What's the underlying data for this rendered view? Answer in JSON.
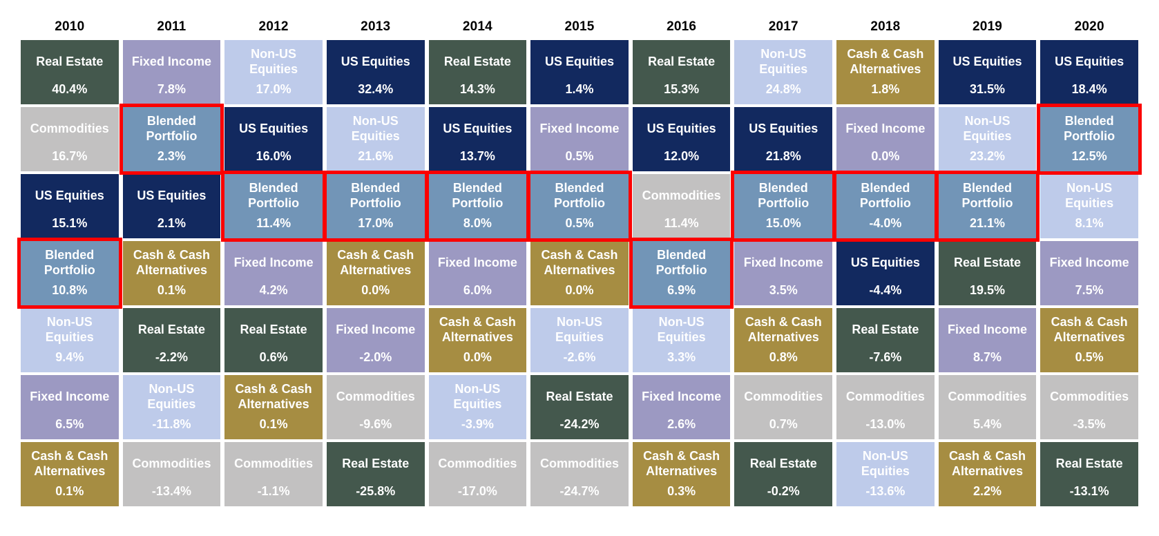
{
  "page": {
    "background_color": "#ffffff",
    "text_color_cells": "#ffffff",
    "text_color_years": "#000000"
  },
  "chart_data": {
    "type": "heatmap",
    "subtype": "asset-class-returns-quilt",
    "years": [
      "2010",
      "2011",
      "2012",
      "2013",
      "2014",
      "2015",
      "2016",
      "2017",
      "2018",
      "2019",
      "2020"
    ],
    "legend_position": "none",
    "grid": "on",
    "highlighted_asset": "Blended Portfolio",
    "highlight_border_color": "#fb0000",
    "asset_classes": [
      {
        "name": "Real Estate",
        "color": "#44584d"
      },
      {
        "name": "Fixed Income",
        "color": "#9c99c2"
      },
      {
        "name": "Non-US Equities",
        "color": "#becbea"
      },
      {
        "name": "US Equities",
        "color": "#12295f"
      },
      {
        "name": "Commodities",
        "color": "#c2c1c1"
      },
      {
        "name": "Blended Portfolio",
        "color": "#7295b7"
      },
      {
        "name": "Cash & Cash Alternatives",
        "color": "#a68d42"
      }
    ],
    "series": [
      {
        "name": "Real Estate",
        "values": [
          40.4,
          -2.2,
          0.6,
          -25.8,
          14.3,
          -24.2,
          15.3,
          -0.2,
          -7.6,
          19.5,
          -13.1
        ]
      },
      {
        "name": "Fixed Income",
        "values": [
          6.5,
          7.8,
          4.2,
          -2.0,
          6.0,
          0.5,
          2.6,
          3.5,
          0.0,
          8.7,
          7.5
        ]
      },
      {
        "name": "Non-US Equities",
        "values": [
          9.4,
          -11.8,
          17.0,
          21.6,
          -3.9,
          -2.6,
          3.3,
          24.8,
          -13.6,
          23.2,
          8.1
        ]
      },
      {
        "name": "US Equities",
        "values": [
          15.1,
          2.1,
          16.0,
          32.4,
          13.7,
          1.4,
          12.0,
          21.8,
          -4.4,
          31.5,
          18.4
        ]
      },
      {
        "name": "Commodities",
        "values": [
          16.7,
          -13.4,
          -1.1,
          -9.6,
          -17.0,
          -24.7,
          11.4,
          0.7,
          -13.0,
          5.4,
          -3.5
        ]
      },
      {
        "name": "Blended Portfolio",
        "values": [
          10.8,
          2.3,
          11.4,
          17.0,
          8.0,
          0.5,
          6.9,
          15.0,
          -4.0,
          21.1,
          12.5
        ]
      },
      {
        "name": "Cash & Cash Alternatives",
        "values": [
          0.1,
          0.1,
          0.1,
          0.0,
          0.0,
          0.0,
          0.3,
          0.8,
          1.8,
          2.2,
          0.5
        ]
      }
    ],
    "ranked_columns": [
      {
        "year": "2010",
        "cells": [
          {
            "asset": "Real Estate",
            "value": "40.4%",
            "highlighted": false
          },
          {
            "asset": "Commodities",
            "value": "16.7%",
            "highlighted": false
          },
          {
            "asset": "US Equities",
            "value": "15.1%",
            "highlighted": false
          },
          {
            "asset": "Blended Portfolio",
            "value": "10.8%",
            "highlighted": true
          },
          {
            "asset": "Non-US Equities",
            "value": "9.4%",
            "highlighted": false
          },
          {
            "asset": "Fixed Income",
            "value": "6.5%",
            "highlighted": false
          },
          {
            "asset": "Cash & Cash Alternatives",
            "value": "0.1%",
            "highlighted": false
          }
        ]
      },
      {
        "year": "2011",
        "cells": [
          {
            "asset": "Fixed Income",
            "value": "7.8%",
            "highlighted": false
          },
          {
            "asset": "Blended Portfolio",
            "value": "2.3%",
            "highlighted": true
          },
          {
            "asset": "US Equities",
            "value": "2.1%",
            "highlighted": false
          },
          {
            "asset": "Cash & Cash Alternatives",
            "value": "0.1%",
            "highlighted": false
          },
          {
            "asset": "Real Estate",
            "value": "-2.2%",
            "highlighted": false
          },
          {
            "asset": "Non-US Equities",
            "value": "-11.8%",
            "highlighted": false
          },
          {
            "asset": "Commodities",
            "value": "-13.4%",
            "highlighted": false
          }
        ]
      },
      {
        "year": "2012",
        "cells": [
          {
            "asset": "Non-US Equities",
            "value": "17.0%",
            "highlighted": false
          },
          {
            "asset": "US Equities",
            "value": "16.0%",
            "highlighted": false
          },
          {
            "asset": "Blended Portfolio",
            "value": "11.4%",
            "highlighted": true
          },
          {
            "asset": "Fixed Income",
            "value": "4.2%",
            "highlighted": false
          },
          {
            "asset": "Real Estate",
            "value": "0.6%",
            "highlighted": false
          },
          {
            "asset": "Cash & Cash Alternatives",
            "value": "0.1%",
            "highlighted": false
          },
          {
            "asset": "Commodities",
            "value": "-1.1%",
            "highlighted": false
          }
        ]
      },
      {
        "year": "2013",
        "cells": [
          {
            "asset": "US Equities",
            "value": "32.4%",
            "highlighted": false
          },
          {
            "asset": "Non-US Equities",
            "value": "21.6%",
            "highlighted": false
          },
          {
            "asset": "Blended Portfolio",
            "value": "17.0%",
            "highlighted": true
          },
          {
            "asset": "Cash & Cash Alternatives",
            "value": "0.0%",
            "highlighted": false
          },
          {
            "asset": "Fixed Income",
            "value": "-2.0%",
            "highlighted": false
          },
          {
            "asset": "Commodities",
            "value": "-9.6%",
            "highlighted": false
          },
          {
            "asset": "Real Estate",
            "value": "-25.8%",
            "highlighted": false
          }
        ]
      },
      {
        "year": "2014",
        "cells": [
          {
            "asset": "Real Estate",
            "value": "14.3%",
            "highlighted": false
          },
          {
            "asset": "US Equities",
            "value": "13.7%",
            "highlighted": false
          },
          {
            "asset": "Blended Portfolio",
            "value": "8.0%",
            "highlighted": true
          },
          {
            "asset": "Fixed Income",
            "value": "6.0%",
            "highlighted": false
          },
          {
            "asset": "Cash & Cash Alternatives",
            "value": "0.0%",
            "highlighted": false
          },
          {
            "asset": "Non-US Equities",
            "value": "-3.9%",
            "highlighted": false
          },
          {
            "asset": "Commodities",
            "value": "-17.0%",
            "highlighted": false
          }
        ]
      },
      {
        "year": "2015",
        "cells": [
          {
            "asset": "US Equities",
            "value": "1.4%",
            "highlighted": false
          },
          {
            "asset": "Fixed Income",
            "value": "0.5%",
            "highlighted": false
          },
          {
            "asset": "Blended Portfolio",
            "value": "0.5%",
            "highlighted": true
          },
          {
            "asset": "Cash & Cash Alternatives",
            "value": "0.0%",
            "highlighted": false
          },
          {
            "asset": "Non-US Equities",
            "value": "-2.6%",
            "highlighted": false
          },
          {
            "asset": "Real Estate",
            "value": "-24.2%",
            "highlighted": false
          },
          {
            "asset": "Commodities",
            "value": "-24.7%",
            "highlighted": false
          }
        ]
      },
      {
        "year": "2016",
        "cells": [
          {
            "asset": "Real Estate",
            "value": "15.3%",
            "highlighted": false
          },
          {
            "asset": "US Equities",
            "value": "12.0%",
            "highlighted": false
          },
          {
            "asset": "Commodities",
            "value": "11.4%",
            "highlighted": false
          },
          {
            "asset": "Blended Portfolio",
            "value": "6.9%",
            "highlighted": true
          },
          {
            "asset": "Non-US Equities",
            "value": "3.3%",
            "highlighted": false
          },
          {
            "asset": "Fixed Income",
            "value": "2.6%",
            "highlighted": false
          },
          {
            "asset": "Cash & Cash Alternatives",
            "value": "0.3%",
            "highlighted": false
          }
        ]
      },
      {
        "year": "2017",
        "cells": [
          {
            "asset": "Non-US Equities",
            "value": "24.8%",
            "highlighted": false
          },
          {
            "asset": "US Equities",
            "value": "21.8%",
            "highlighted": false
          },
          {
            "asset": "Blended Portfolio",
            "value": "15.0%",
            "highlighted": true
          },
          {
            "asset": "Fixed Income",
            "value": "3.5%",
            "highlighted": false
          },
          {
            "asset": "Cash & Cash Alternatives",
            "value": "0.8%",
            "highlighted": false
          },
          {
            "asset": "Commodities",
            "value": "0.7%",
            "highlighted": false
          },
          {
            "asset": "Real Estate",
            "value": "-0.2%",
            "highlighted": false
          }
        ]
      },
      {
        "year": "2018",
        "cells": [
          {
            "asset": "Cash & Cash Alternatives",
            "value": "1.8%",
            "highlighted": false
          },
          {
            "asset": "Fixed Income",
            "value": "0.0%",
            "highlighted": false
          },
          {
            "asset": "Blended Portfolio",
            "value": "-4.0%",
            "highlighted": true
          },
          {
            "asset": "US Equities",
            "value": "-4.4%",
            "highlighted": false
          },
          {
            "asset": "Real Estate",
            "value": "-7.6%",
            "highlighted": false
          },
          {
            "asset": "Commodities",
            "value": "-13.0%",
            "highlighted": false
          },
          {
            "asset": "Non-US Equities",
            "value": "-13.6%",
            "highlighted": false
          }
        ]
      },
      {
        "year": "2019",
        "cells": [
          {
            "asset": "US Equities",
            "value": "31.5%",
            "highlighted": false
          },
          {
            "asset": "Non-US Equities",
            "value": "23.2%",
            "highlighted": false
          },
          {
            "asset": "Blended Portfolio",
            "value": "21.1%",
            "highlighted": true
          },
          {
            "asset": "Real Estate",
            "value": "19.5%",
            "highlighted": false
          },
          {
            "asset": "Fixed Income",
            "value": "8.7%",
            "highlighted": false
          },
          {
            "asset": "Commodities",
            "value": "5.4%",
            "highlighted": false
          },
          {
            "asset": "Cash & Cash Alternatives",
            "value": "2.2%",
            "highlighted": false
          }
        ]
      },
      {
        "year": "2020",
        "cells": [
          {
            "asset": "US Equities",
            "value": "18.4%",
            "highlighted": false
          },
          {
            "asset": "Blended Portfolio",
            "value": "12.5%",
            "highlighted": true
          },
          {
            "asset": "Non-US Equities",
            "value": "8.1%",
            "highlighted": false
          },
          {
            "asset": "Fixed Income",
            "value": "7.5%",
            "highlighted": false
          },
          {
            "asset": "Cash & Cash Alternatives",
            "value": "0.5%",
            "highlighted": false
          },
          {
            "asset": "Commodities",
            "value": "-3.5%",
            "highlighted": false
          },
          {
            "asset": "Real Estate",
            "value": "-13.1%",
            "highlighted": false
          }
        ]
      }
    ]
  }
}
